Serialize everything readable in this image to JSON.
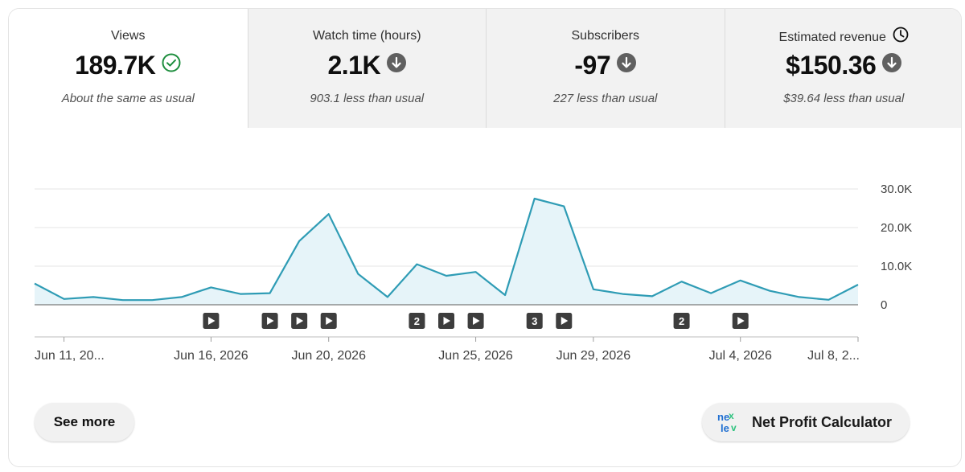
{
  "tabs": [
    {
      "label": "Views",
      "value": "189.7K",
      "note": "About the same as usual",
      "status": "check-circle-icon"
    },
    {
      "label": "Watch time (hours)",
      "value": "2.1K",
      "note": "903.1 less than usual",
      "status": "arrow-down-circle-icon"
    },
    {
      "label": "Subscribers",
      "value": "-97",
      "note": "227 less than usual",
      "status": "arrow-down-circle-icon"
    },
    {
      "label": "Estimated revenue",
      "value": "$150.36",
      "note": "$39.64 less than usual",
      "status": "arrow-down-circle-icon",
      "extra_icon": "clock-icon"
    }
  ],
  "colors": {
    "line": "#2f9cb5",
    "area": "#e6f4f9",
    "check": "#1e8e3e",
    "down": "#606060",
    "grid": "#e5e5e5",
    "marker": "#3d3d3d"
  },
  "chart_data": {
    "type": "area",
    "x": [
      "Jun 10, 2026",
      "Jun 11, 2026",
      "Jun 12, 2026",
      "Jun 13, 2026",
      "Jun 14, 2026",
      "Jun 15, 2026",
      "Jun 16, 2026",
      "Jun 17, 2026",
      "Jun 18, 2026",
      "Jun 19, 2026",
      "Jun 20, 2026",
      "Jun 21, 2026",
      "Jun 22, 2026",
      "Jun 23, 2026",
      "Jun 24, 2026",
      "Jun 25, 2026",
      "Jun 26, 2026",
      "Jun 27, 2026",
      "Jun 28, 2026",
      "Jun 29, 2026",
      "Jun 30, 2026",
      "Jul 1, 2026",
      "Jul 2, 2026",
      "Jul 3, 2026",
      "Jul 4, 2026",
      "Jul 5, 2026",
      "Jul 6, 2026",
      "Jul 7, 2026",
      "Jul 8, 2026"
    ],
    "series": [
      {
        "values": [
          5500,
          1500,
          2000,
          1200,
          1200,
          2000,
          4500,
          2800,
          3000,
          16500,
          23500,
          8000,
          2000,
          10500,
          7500,
          8500,
          2500,
          27500,
          25500,
          4000,
          2800,
          2200,
          6000,
          3000,
          6300,
          3600,
          2000,
          1300,
          5200
        ]
      }
    ],
    "xticks": [
      "Jun 11, 20...",
      "Jun 16, 2026",
      "Jun 20, 2026",
      "Jun 25, 2026",
      "Jun 29, 2026",
      "Jul 4, 2026",
      "Jul 8, 2..."
    ],
    "ytick_labels": [
      "0",
      "10.0K",
      "20.0K",
      "30.0K"
    ],
    "ylim": [
      0,
      30000
    ],
    "y_axis_side": "right",
    "grid": true,
    "markers": [
      {
        "x": "Jun 16, 2026",
        "label": ""
      },
      {
        "x": "Jun 18, 2026",
        "label": ""
      },
      {
        "x": "Jun 19, 2026",
        "label": ""
      },
      {
        "x": "Jun 20, 2026",
        "label": ""
      },
      {
        "x": "Jun 23, 2026",
        "label": "2"
      },
      {
        "x": "Jun 24, 2026",
        "label": ""
      },
      {
        "x": "Jun 25, 2026",
        "label": ""
      },
      {
        "x": "Jun 27, 2026",
        "label": "3"
      },
      {
        "x": "Jun 28, 2026",
        "label": ""
      },
      {
        "x": "Jul 2, 2026",
        "label": "2"
      },
      {
        "x": "Jul 4, 2026",
        "label": ""
      }
    ]
  },
  "buttons": {
    "see_more": "See more",
    "net_profit": "Net Profit Calculator"
  }
}
